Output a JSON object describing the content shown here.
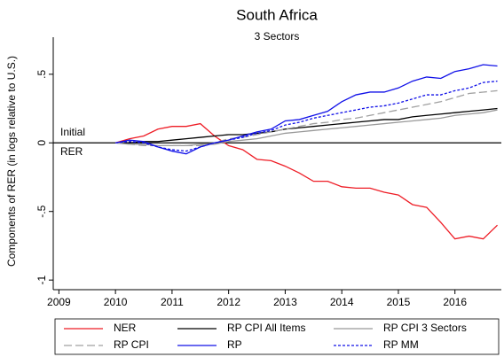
{
  "chart_data": {
    "type": "line",
    "title": "South Africa",
    "subtitle": "3 Sectors",
    "ylabel": "Components of RER (in logs relative to U.S.)",
    "annotations": [
      "Initial",
      "RER"
    ],
    "hline": 0,
    "x": [
      2010,
      2010.25,
      2010.5,
      2010.75,
      2011,
      2011.25,
      2011.5,
      2011.75,
      2012,
      2012.25,
      2012.5,
      2012.75,
      2013,
      2013.25,
      2013.5,
      2013.75,
      2014,
      2014.25,
      2014.5,
      2014.75,
      2015,
      2015.25,
      2015.5,
      2015.75,
      2016,
      2016.25,
      2016.5,
      2016.75
    ],
    "xlim": [
      2008.9,
      2016.82
    ],
    "xticks": [
      2009,
      2010,
      2011,
      2012,
      2013,
      2014,
      2015,
      2016
    ],
    "ylim": [
      -1.07,
      0.77
    ],
    "yticks": [
      {
        "value": -1,
        "label": "-1"
      },
      {
        "value": -0.5,
        "label": "-.5"
      },
      0,
      {
        "value": 0.5,
        "label": ".5"
      }
    ],
    "grid": false,
    "series": [
      {
        "name": "NER",
        "color": "#ee1c25",
        "dash": "solid",
        "values": [
          0,
          0.03,
          0.05,
          0.1,
          0.12,
          0.12,
          0.14,
          0.05,
          -0.02,
          -0.05,
          -0.12,
          -0.13,
          -0.17,
          -0.22,
          -0.28,
          -0.28,
          -0.32,
          -0.33,
          -0.33,
          -0.36,
          -0.38,
          -0.45,
          -0.47,
          -0.58,
          -0.7,
          -0.68,
          -0.7,
          -0.6
        ]
      },
      {
        "name": "RP CPI All Items",
        "color": "#000000",
        "dash": "solid",
        "values": [
          0,
          0,
          0.01,
          0.01,
          0.02,
          0.03,
          0.04,
          0.05,
          0.06,
          0.06,
          0.07,
          0.08,
          0.1,
          0.11,
          0.12,
          0.13,
          0.14,
          0.15,
          0.16,
          0.17,
          0.17,
          0.19,
          0.2,
          0.21,
          0.22,
          0.23,
          0.24,
          0.25
        ]
      },
      {
        "name": "RP CPI 3 Sectors",
        "color": "#999999",
        "dash": "solid",
        "values": [
          0,
          -0.01,
          -0.01,
          -0.02,
          -0.02,
          -0.02,
          -0.01,
          -0.01,
          0.01,
          0.02,
          0.03,
          0.05,
          0.07,
          0.08,
          0.09,
          0.1,
          0.11,
          0.12,
          0.13,
          0.14,
          0.15,
          0.16,
          0.17,
          0.18,
          0.2,
          0.21,
          0.22,
          0.24
        ]
      },
      {
        "name": "RP CPI",
        "color": "#a0a0a0",
        "dash": "dashed",
        "values": [
          0,
          -0.01,
          -0.02,
          -0.02,
          -0.02,
          -0.02,
          -0.02,
          0,
          0.03,
          0.04,
          0.06,
          0.08,
          0.1,
          0.12,
          0.14,
          0.15,
          0.17,
          0.18,
          0.2,
          0.22,
          0.24,
          0.26,
          0.28,
          0.3,
          0.33,
          0.36,
          0.37,
          0.38
        ]
      },
      {
        "name": "RP",
        "color": "#1010e8",
        "dash": "solid",
        "values": [
          0,
          0.02,
          0.01,
          -0.03,
          -0.06,
          -0.08,
          -0.03,
          0,
          0.02,
          0.05,
          0.08,
          0.1,
          0.16,
          0.17,
          0.2,
          0.23,
          0.3,
          0.35,
          0.37,
          0.37,
          0.4,
          0.45,
          0.48,
          0.47,
          0.52,
          0.54,
          0.57,
          0.56
        ]
      },
      {
        "name": "RP MM",
        "color": "#1010e8",
        "dash": "dotted",
        "values": [
          0,
          0.01,
          0,
          -0.03,
          -0.05,
          -0.06,
          -0.03,
          0,
          0.02,
          0.04,
          0.07,
          0.09,
          0.13,
          0.15,
          0.18,
          0.2,
          0.22,
          0.24,
          0.26,
          0.27,
          0.29,
          0.32,
          0.35,
          0.35,
          0.38,
          0.4,
          0.44,
          0.45
        ]
      }
    ]
  }
}
